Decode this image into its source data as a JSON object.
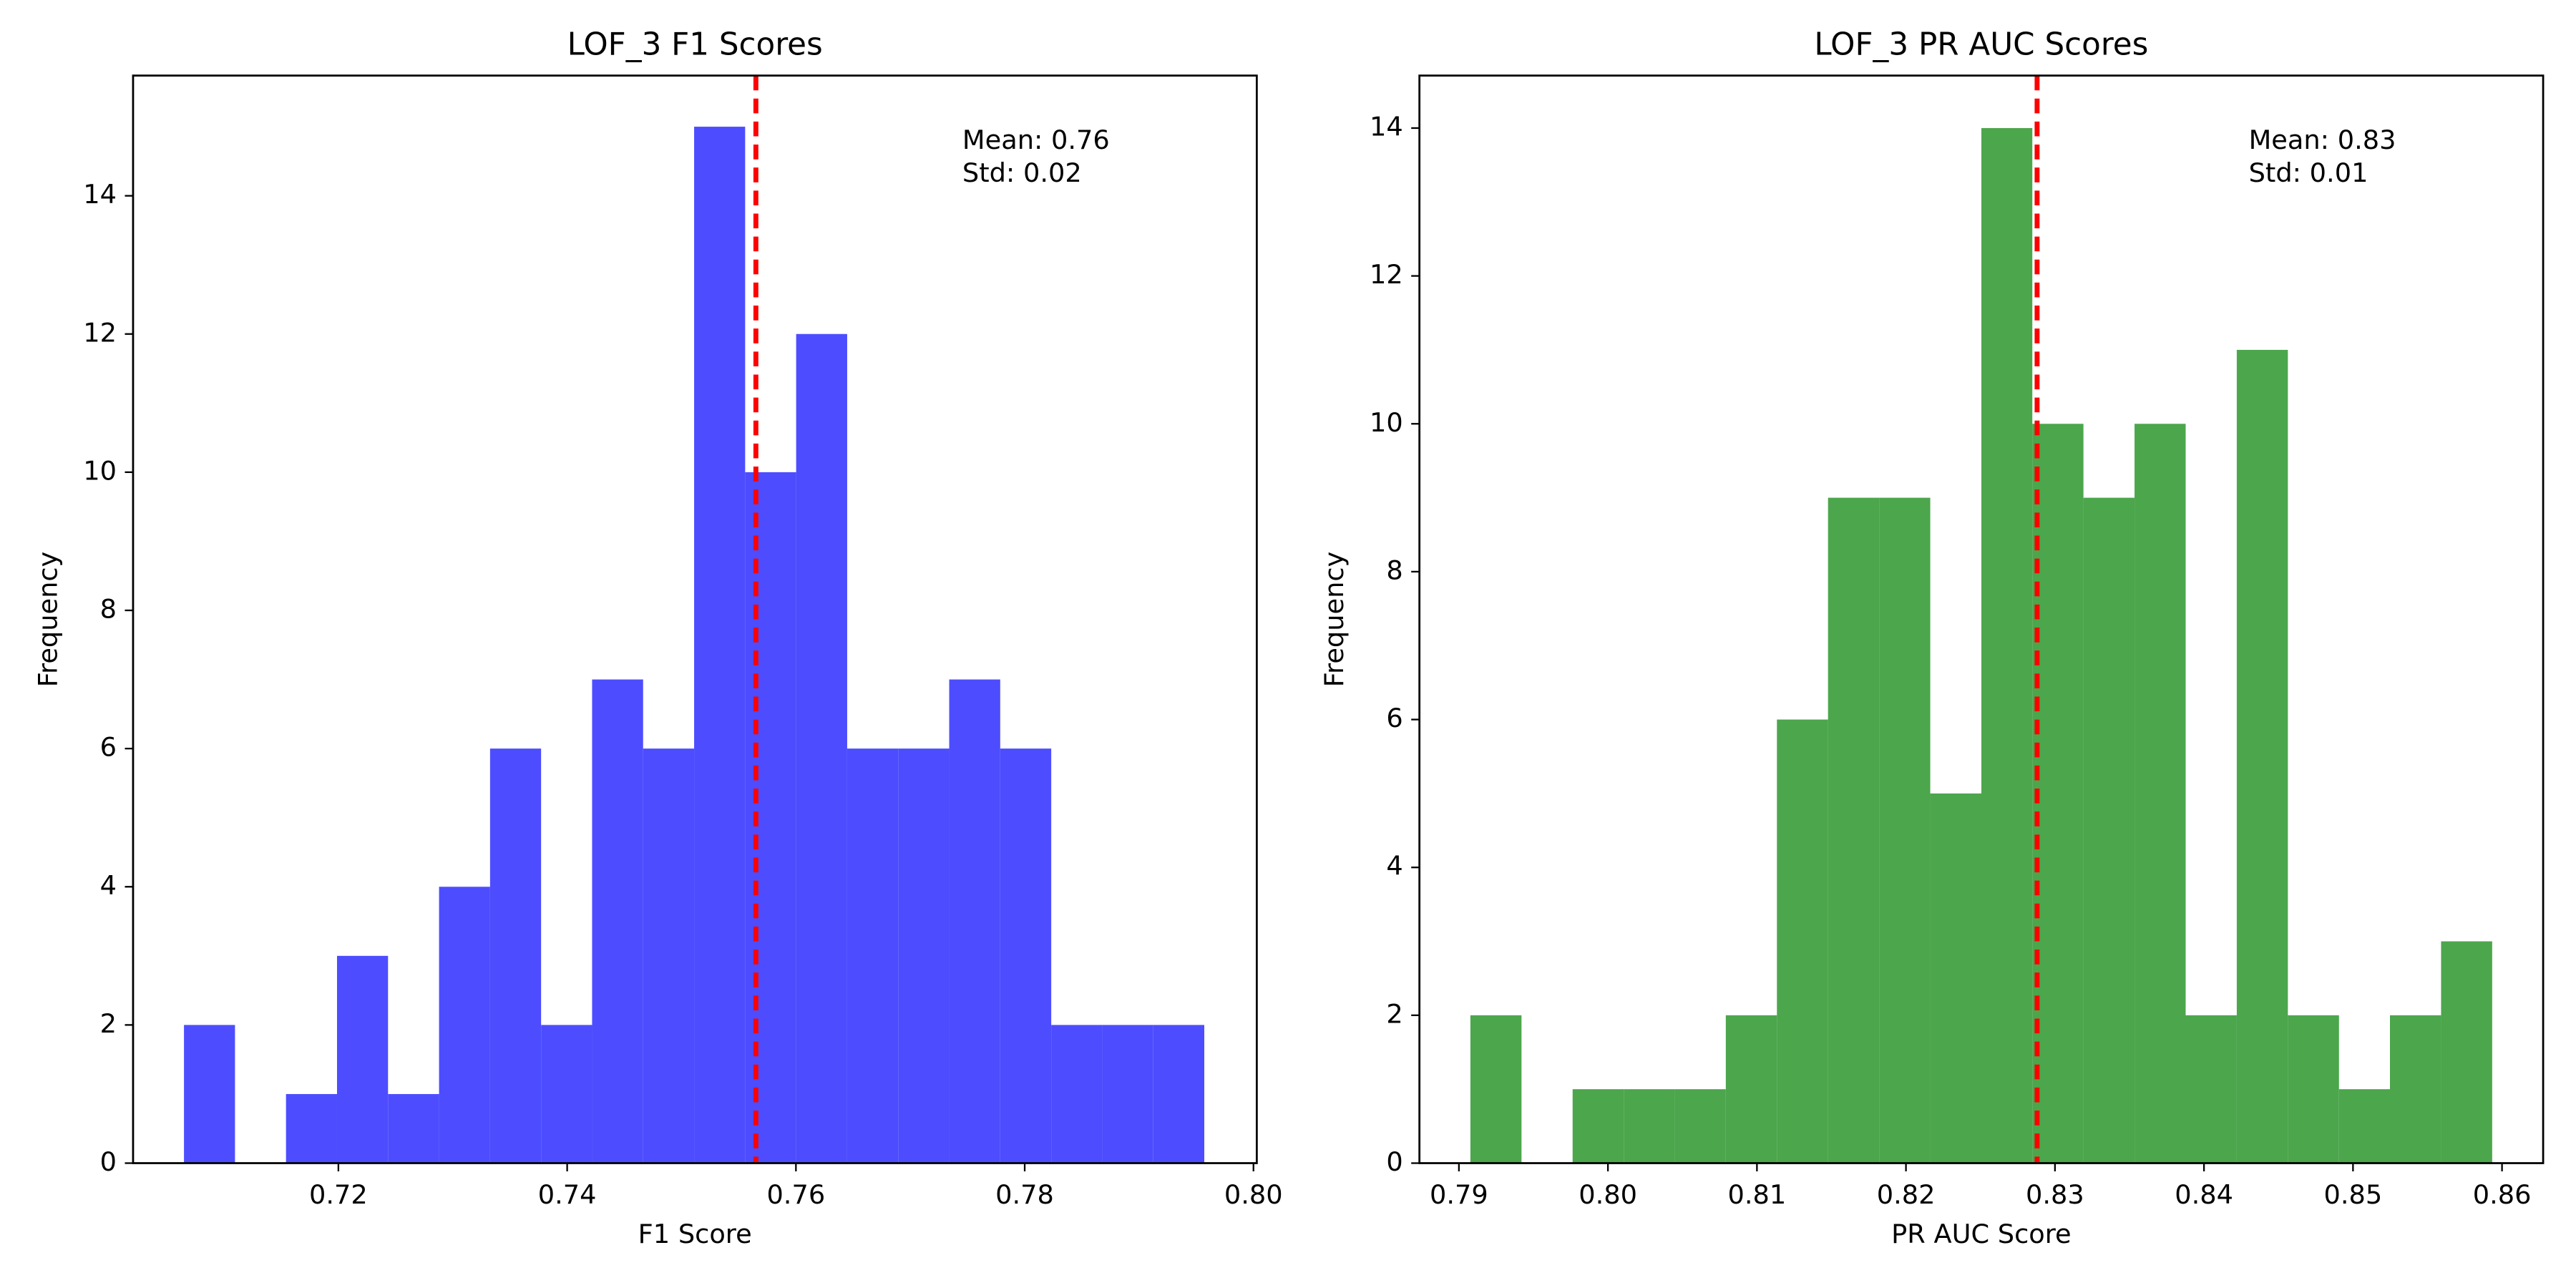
{
  "chart_data": [
    {
      "type": "histogram",
      "title": "LOF_3 F1 Scores",
      "x_label": "F1 Score",
      "y_label": "Frequency",
      "bins": [
        0.7065,
        0.71096,
        0.71542,
        0.71988,
        0.72434,
        0.7288,
        0.73326,
        0.73772,
        0.74218,
        0.74664,
        0.7511,
        0.75556,
        0.76002,
        0.76448,
        0.76894,
        0.7734,
        0.77786,
        0.78232,
        0.78678,
        0.79124,
        0.7957
      ],
      "counts": [
        2,
        0,
        1,
        3,
        1,
        4,
        6,
        2,
        7,
        6,
        15,
        10,
        12,
        6,
        6,
        7,
        6,
        2,
        2,
        2
      ],
      "color": "#4d4dff",
      "mean_line": {
        "value": 0.7565,
        "color": "#ff0000"
      },
      "annotations": [
        "Mean: 0.76",
        "Std: 0.02"
      ],
      "xlim": [
        0.70205,
        0.80029
      ],
      "xticks": [
        0.72,
        0.74,
        0.76,
        0.78,
        {
          "value": 0.8,
          "label": "0.80"
        }
      ],
      "ylim": [
        0,
        15.74
      ],
      "yticks": [
        0,
        2,
        4,
        6,
        8,
        10,
        12,
        14
      ]
    },
    {
      "type": "histogram",
      "title": "LOF_3 PR AUC Scores",
      "x_label": "PR AUC Score",
      "y_label": "Frequency",
      "bins": [
        0.79077,
        0.7942,
        0.79763,
        0.80106,
        0.80448,
        0.80791,
        0.81134,
        0.81477,
        0.8182,
        0.82163,
        0.82506,
        0.82848,
        0.83191,
        0.83534,
        0.83877,
        0.8422,
        0.84563,
        0.84906,
        0.85248,
        0.85591,
        0.85934
      ],
      "counts": [
        2,
        0,
        1,
        1,
        1,
        2,
        6,
        9,
        9,
        5,
        14,
        10,
        9,
        10,
        2,
        11,
        2,
        1,
        2,
        3
      ],
      "color": "#4ca64c",
      "mean_line": {
        "value": 0.8288,
        "color": "#ff0000"
      },
      "annotations": [
        "Mean: 0.83",
        "Std: 0.01"
      ],
      "xlim": [
        0.78735,
        0.86276
      ],
      "xticks": [
        0.79,
        {
          "value": 0.8,
          "label": "0.80"
        },
        0.81,
        0.82,
        0.83,
        0.84,
        0.85,
        0.86
      ],
      "ylim": [
        0,
        14.71
      ],
      "yticks": [
        0,
        2,
        4,
        6,
        8,
        10,
        12,
        14
      ]
    }
  ]
}
